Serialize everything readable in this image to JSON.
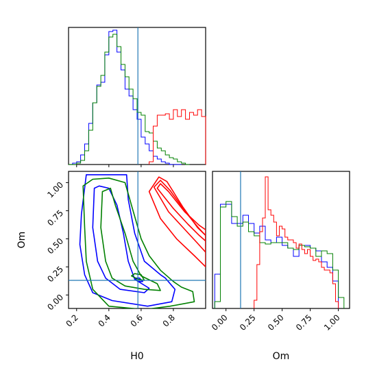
{
  "chart_data": [
    {
      "type": "histogram",
      "panel": "H0 marginal",
      "xlim": [
        0.15,
        1.0
      ],
      "x_ticks": [
        0.2,
        0.4,
        0.6,
        0.8
      ],
      "truth_x": 0.58,
      "series": [
        {
          "color": "#0000ff",
          "bins": [
            0.15,
            0.175,
            0.2,
            0.225,
            0.25,
            0.275,
            0.3,
            0.325,
            0.35,
            0.375,
            0.4,
            0.425,
            0.45,
            0.475,
            0.5,
            0.525,
            0.55,
            0.575,
            0.6,
            0.625,
            0.65,
            0.675,
            0.7,
            0.725,
            0.75,
            0.775,
            0.8,
            0.825,
            0.85
          ],
          "values": [
            0,
            0.01,
            0.02,
            0.07,
            0.15,
            0.3,
            0.45,
            0.58,
            0.6,
            0.8,
            0.97,
            0.98,
            0.82,
            0.69,
            0.55,
            0.5,
            0.4,
            0.33,
            0.2,
            0.15,
            0.1,
            0.06,
            0.04,
            0.02,
            0.01,
            0,
            0,
            0
          ]
        },
        {
          "color": "#008000",
          "bins": [
            0.15,
            0.175,
            0.2,
            0.225,
            0.25,
            0.275,
            0.3,
            0.325,
            0.35,
            0.375,
            0.4,
            0.425,
            0.45,
            0.475,
            0.5,
            0.525,
            0.55,
            0.575,
            0.6,
            0.625,
            0.65,
            0.675,
            0.7,
            0.725,
            0.75,
            0.775,
            0.8,
            0.825,
            0.85,
            0.875,
            0.9
          ],
          "values": [
            0,
            0,
            0.01,
            0.03,
            0.1,
            0.25,
            0.45,
            0.57,
            0.65,
            0.82,
            0.93,
            0.95,
            0.86,
            0.73,
            0.64,
            0.55,
            0.48,
            0.38,
            0.36,
            0.24,
            0.23,
            0.17,
            0.12,
            0.1,
            0.07,
            0.05,
            0.04,
            0.02,
            0.01,
            0
          ]
        },
        {
          "color": "#ff0000",
          "bins": [
            0.65,
            0.675,
            0.7,
            0.725,
            0.75,
            0.775,
            0.8,
            0.825,
            0.85,
            0.875,
            0.9,
            0.925,
            0.95,
            0.975,
            1.0
          ],
          "values": [
            0.02,
            0.28,
            0.36,
            0.36,
            0.37,
            0.33,
            0.4,
            0.35,
            0.4,
            0.33,
            0.38,
            0.36,
            0.4,
            0.35
          ]
        }
      ]
    },
    {
      "type": "contour",
      "panel": "H0 vs Om",
      "xlabel": "H0",
      "ylabel": "Om",
      "xlim": [
        0.15,
        1.0
      ],
      "ylim": [
        -0.12,
        1.1
      ],
      "x_ticks": [
        0.2,
        0.4,
        0.6,
        0.8
      ],
      "x_tick_labels": [
        "0.2",
        "0.4",
        "0.6",
        "0.8"
      ],
      "y_ticks": [
        0.0,
        0.25,
        0.5,
        0.75,
        1.0
      ],
      "y_tick_labels": [
        "0.00",
        "0.25",
        "0.50",
        "0.75",
        "1.00"
      ],
      "truth": [
        0.58,
        0.13
      ],
      "contours": [
        {
          "color": "#0000ff",
          "level": "outer",
          "points": [
            [
              0.26,
              1.07
            ],
            [
              0.23,
              0.72
            ],
            [
              0.22,
              0.45
            ],
            [
              0.25,
              0.18
            ],
            [
              0.3,
              0.02
            ],
            [
              0.42,
              -0.05
            ],
            [
              0.64,
              -0.1
            ],
            [
              0.79,
              -0.06
            ],
            [
              0.81,
              0.05
            ],
            [
              0.75,
              0.15
            ],
            [
              0.72,
              0.18
            ],
            [
              0.62,
              0.3
            ],
            [
              0.56,
              0.55
            ],
            [
              0.52,
              0.85
            ],
            [
              0.51,
              1.07
            ]
          ]
        },
        {
          "color": "#0000ff",
          "level": "middle",
          "points": [
            [
              0.31,
              0.95
            ],
            [
              0.3,
              0.6
            ],
            [
              0.33,
              0.3
            ],
            [
              0.38,
              0.15
            ],
            [
              0.47,
              0.05
            ],
            [
              0.62,
              0.02
            ],
            [
              0.65,
              0.06
            ],
            [
              0.56,
              0.14
            ],
            [
              0.52,
              0.3
            ],
            [
              0.49,
              0.55
            ],
            [
              0.45,
              0.8
            ],
            [
              0.4,
              0.95
            ],
            [
              0.34,
              0.97
            ]
          ]
        },
        {
          "color": "#0000ff",
          "level": "inner",
          "points": [
            [
              0.56,
              0.15
            ],
            [
              0.58,
              0.12
            ],
            [
              0.61,
              0.12
            ],
            [
              0.59,
              0.15
            ]
          ]
        },
        {
          "color": "#008000",
          "level": "outer",
          "points": [
            [
              0.24,
              0.97
            ],
            [
              0.25,
              0.6
            ],
            [
              0.26,
              0.3
            ],
            [
              0.3,
              0.05
            ],
            [
              0.4,
              -0.1
            ],
            [
              0.62,
              -0.13
            ],
            [
              0.78,
              -0.1
            ],
            [
              0.93,
              -0.06
            ],
            [
              0.92,
              0.03
            ],
            [
              0.85,
              0.07
            ],
            [
              0.8,
              0.12
            ],
            [
              0.72,
              0.22
            ],
            [
              0.65,
              0.35
            ],
            [
              0.6,
              0.5
            ],
            [
              0.55,
              0.75
            ],
            [
              0.5,
              1.0
            ],
            [
              0.4,
              1.04
            ],
            [
              0.3,
              1.03
            ]
          ]
        },
        {
          "color": "#008000",
          "level": "middle",
          "points": [
            [
              0.36,
              0.92
            ],
            [
              0.35,
              0.6
            ],
            [
              0.38,
              0.3
            ],
            [
              0.42,
              0.15
            ],
            [
              0.5,
              0.08
            ],
            [
              0.62,
              0.05
            ],
            [
              0.72,
              0.04
            ],
            [
              0.7,
              0.1
            ],
            [
              0.6,
              0.17
            ],
            [
              0.55,
              0.3
            ],
            [
              0.5,
              0.55
            ],
            [
              0.44,
              0.8
            ],
            [
              0.41,
              0.95
            ]
          ]
        },
        {
          "color": "#008000",
          "level": "inner",
          "points": [
            [
              0.54,
              0.17
            ],
            [
              0.58,
              0.14
            ],
            [
              0.62,
              0.13
            ],
            [
              0.6,
              0.18
            ],
            [
              0.56,
              0.19
            ]
          ]
        },
        {
          "color": "#ff0000",
          "level": "outer",
          "points": [
            [
              0.65,
              0.92
            ],
            [
              0.71,
              1.05
            ],
            [
              0.76,
              1.01
            ],
            [
              0.86,
              0.78
            ],
            [
              0.95,
              0.6
            ],
            [
              1.0,
              0.53
            ],
            [
              1.0,
              0.25
            ],
            [
              0.93,
              0.35
            ],
            [
              0.82,
              0.5
            ],
            [
              0.72,
              0.68
            ]
          ]
        },
        {
          "color": "#ff0000",
          "level": "middle",
          "points": [
            [
              0.68,
              0.96
            ],
            [
              0.72,
              1.02
            ],
            [
              0.78,
              0.93
            ],
            [
              0.88,
              0.73
            ],
            [
              0.96,
              0.59
            ],
            [
              1.0,
              0.53
            ],
            [
              1.0,
              0.38
            ],
            [
              0.95,
              0.46
            ],
            [
              0.86,
              0.6
            ],
            [
              0.77,
              0.74
            ]
          ]
        },
        {
          "color": "#ff0000",
          "level": "inner",
          "points": [
            [
              0.7,
              0.95
            ],
            [
              0.72,
              0.99
            ],
            [
              0.77,
              0.92
            ],
            [
              0.87,
              0.74
            ],
            [
              0.96,
              0.62
            ],
            [
              1.0,
              0.58
            ],
            [
              1.0,
              0.48
            ],
            [
              0.96,
              0.53
            ],
            [
              0.89,
              0.63
            ],
            [
              0.8,
              0.77
            ]
          ]
        }
      ]
    },
    {
      "type": "histogram",
      "panel": "Om marginal",
      "xlabel": "Om",
      "xlim": [
        -0.12,
        1.1
      ],
      "x_ticks": [
        0.0,
        0.25,
        0.5,
        0.75,
        1.0
      ],
      "x_tick_labels": [
        "0.00",
        "0.25",
        "0.50",
        "0.75",
        "1.00"
      ],
      "truth_x": 0.13,
      "series": [
        {
          "color": "#0000ff",
          "bins": [
            -0.1,
            -0.05,
            0.0,
            0.05,
            0.1,
            0.15,
            0.2,
            0.25,
            0.3,
            0.35,
            0.4,
            0.45,
            0.5,
            0.55,
            0.6,
            0.65,
            0.7,
            0.75,
            0.8,
            0.85,
            0.9,
            0.95,
            1.0
          ],
          "values": [
            0.25,
            0.76,
            0.76,
            0.62,
            0.62,
            0.68,
            0.62,
            0.55,
            0.6,
            0.5,
            0.48,
            0.52,
            0.46,
            0.44,
            0.38,
            0.46,
            0.46,
            0.44,
            0.42,
            0.34,
            0.3,
            0.2
          ]
        },
        {
          "color": "#008000",
          "bins": [
            -0.1,
            -0.05,
            0.0,
            0.05,
            0.1,
            0.15,
            0.2,
            0.25,
            0.3,
            0.35,
            0.4,
            0.45,
            0.5,
            0.55,
            0.6,
            0.65,
            0.7,
            0.75,
            0.8,
            0.85,
            0.9,
            0.95,
            1.0,
            1.05
          ],
          "values": [
            0.05,
            0.74,
            0.78,
            0.67,
            0.6,
            0.63,
            0.56,
            0.53,
            0.48,
            0.47,
            0.48,
            0.48,
            0.48,
            0.44,
            0.43,
            0.46,
            0.45,
            0.44,
            0.38,
            0.42,
            0.4,
            0.28,
            0.08
          ]
        },
        {
          "color": "#ff0000",
          "bins": [
            0.25,
            0.275,
            0.3,
            0.325,
            0.35,
            0.375,
            0.4,
            0.425,
            0.45,
            0.475,
            0.5,
            0.525,
            0.55,
            0.575,
            0.6,
            0.625,
            0.65,
            0.675,
            0.7,
            0.725,
            0.75,
            0.775,
            0.8,
            0.825,
            0.85,
            0.875,
            0.9,
            0.925,
            0.95,
            0.975,
            1.0
          ],
          "values": [
            0.06,
            0.32,
            0.56,
            0.66,
            0.96,
            0.72,
            0.68,
            0.63,
            0.53,
            0.6,
            0.58,
            0.52,
            0.5,
            0.5,
            0.48,
            0.44,
            0.47,
            0.43,
            0.4,
            0.43,
            0.38,
            0.35,
            0.36,
            0.34,
            0.3,
            0.28,
            0.28,
            0.26,
            0.18,
            0.05
          ]
        }
      ]
    }
  ]
}
